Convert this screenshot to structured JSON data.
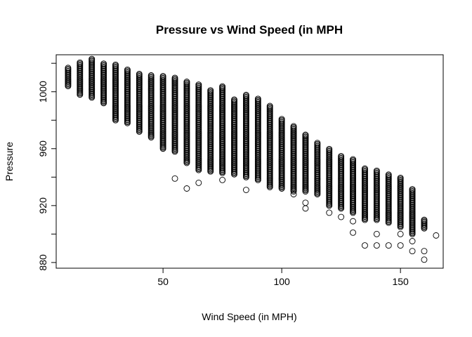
{
  "chart_data": {
    "type": "scatter",
    "title": "Pressure vs Wind Speed (in MPH",
    "xlabel": "Wind Speed (in MPH)",
    "ylabel": "Pressure",
    "xlim": [
      5,
      168
    ],
    "ylim": [
      876,
      1026
    ],
    "x_ticks": [
      50,
      100,
      150
    ],
    "y_ticks": [
      880,
      920,
      960,
      1000
    ],
    "grid": false,
    "point_color": "#000000",
    "bands": [
      {
        "x": 10,
        "min": 1004,
        "max": 1017,
        "outliers": []
      },
      {
        "x": 15,
        "min": 998,
        "max": 1021,
        "outliers": []
      },
      {
        "x": 20,
        "min": 996,
        "max": 1023,
        "outliers": []
      },
      {
        "x": 25,
        "min": 992,
        "max": 1020,
        "outliers": []
      },
      {
        "x": 30,
        "min": 980,
        "max": 1019,
        "outliers": []
      },
      {
        "x": 35,
        "min": 978,
        "max": 1016,
        "outliers": []
      },
      {
        "x": 40,
        "min": 972,
        "max": 1013,
        "outliers": []
      },
      {
        "x": 45,
        "min": 968,
        "max": 1012,
        "outliers": []
      },
      {
        "x": 50,
        "min": 960,
        "max": 1011,
        "outliers": []
      },
      {
        "x": 55,
        "min": 958,
        "max": 1010,
        "outliers": [
          939
        ]
      },
      {
        "x": 60,
        "min": 950,
        "max": 1007,
        "outliers": [
          932
        ]
      },
      {
        "x": 65,
        "min": 945,
        "max": 1005,
        "outliers": [
          936
        ]
      },
      {
        "x": 70,
        "min": 944,
        "max": 1001,
        "outliers": []
      },
      {
        "x": 75,
        "min": 943,
        "max": 1004,
        "outliers": [
          938
        ]
      },
      {
        "x": 80,
        "min": 942,
        "max": 995,
        "outliers": []
      },
      {
        "x": 85,
        "min": 940,
        "max": 998,
        "outliers": [
          931
        ]
      },
      {
        "x": 90,
        "min": 938,
        "max": 995,
        "outliers": []
      },
      {
        "x": 95,
        "min": 933,
        "max": 990,
        "outliers": []
      },
      {
        "x": 100,
        "min": 932,
        "max": 981,
        "outliers": []
      },
      {
        "x": 105,
        "min": 930,
        "max": 976,
        "outliers": [
          928
        ]
      },
      {
        "x": 110,
        "min": 930,
        "max": 970,
        "outliers": [
          922,
          918
        ]
      },
      {
        "x": 115,
        "min": 928,
        "max": 964,
        "outliers": []
      },
      {
        "x": 120,
        "min": 920,
        "max": 960,
        "outliers": [
          915
        ]
      },
      {
        "x": 125,
        "min": 918,
        "max": 955,
        "outliers": [
          912
        ]
      },
      {
        "x": 130,
        "min": 915,
        "max": 953,
        "outliers": [
          909,
          901
        ]
      },
      {
        "x": 135,
        "min": 910,
        "max": 946,
        "outliers": [
          892
        ]
      },
      {
        "x": 140,
        "min": 910,
        "max": 945,
        "outliers": [
          900,
          892
        ]
      },
      {
        "x": 145,
        "min": 908,
        "max": 942,
        "outliers": [
          892
        ]
      },
      {
        "x": 150,
        "min": 905,
        "max": 940,
        "outliers": [
          900,
          892
        ]
      },
      {
        "x": 155,
        "min": 900,
        "max": 932,
        "outliers": [
          895,
          888
        ]
      },
      {
        "x": 160,
        "min": 904,
        "max": 910,
        "outliers": [
          888,
          882
        ]
      },
      {
        "x": 165,
        "min": 899,
        "max": 899,
        "outliers": []
      }
    ]
  }
}
